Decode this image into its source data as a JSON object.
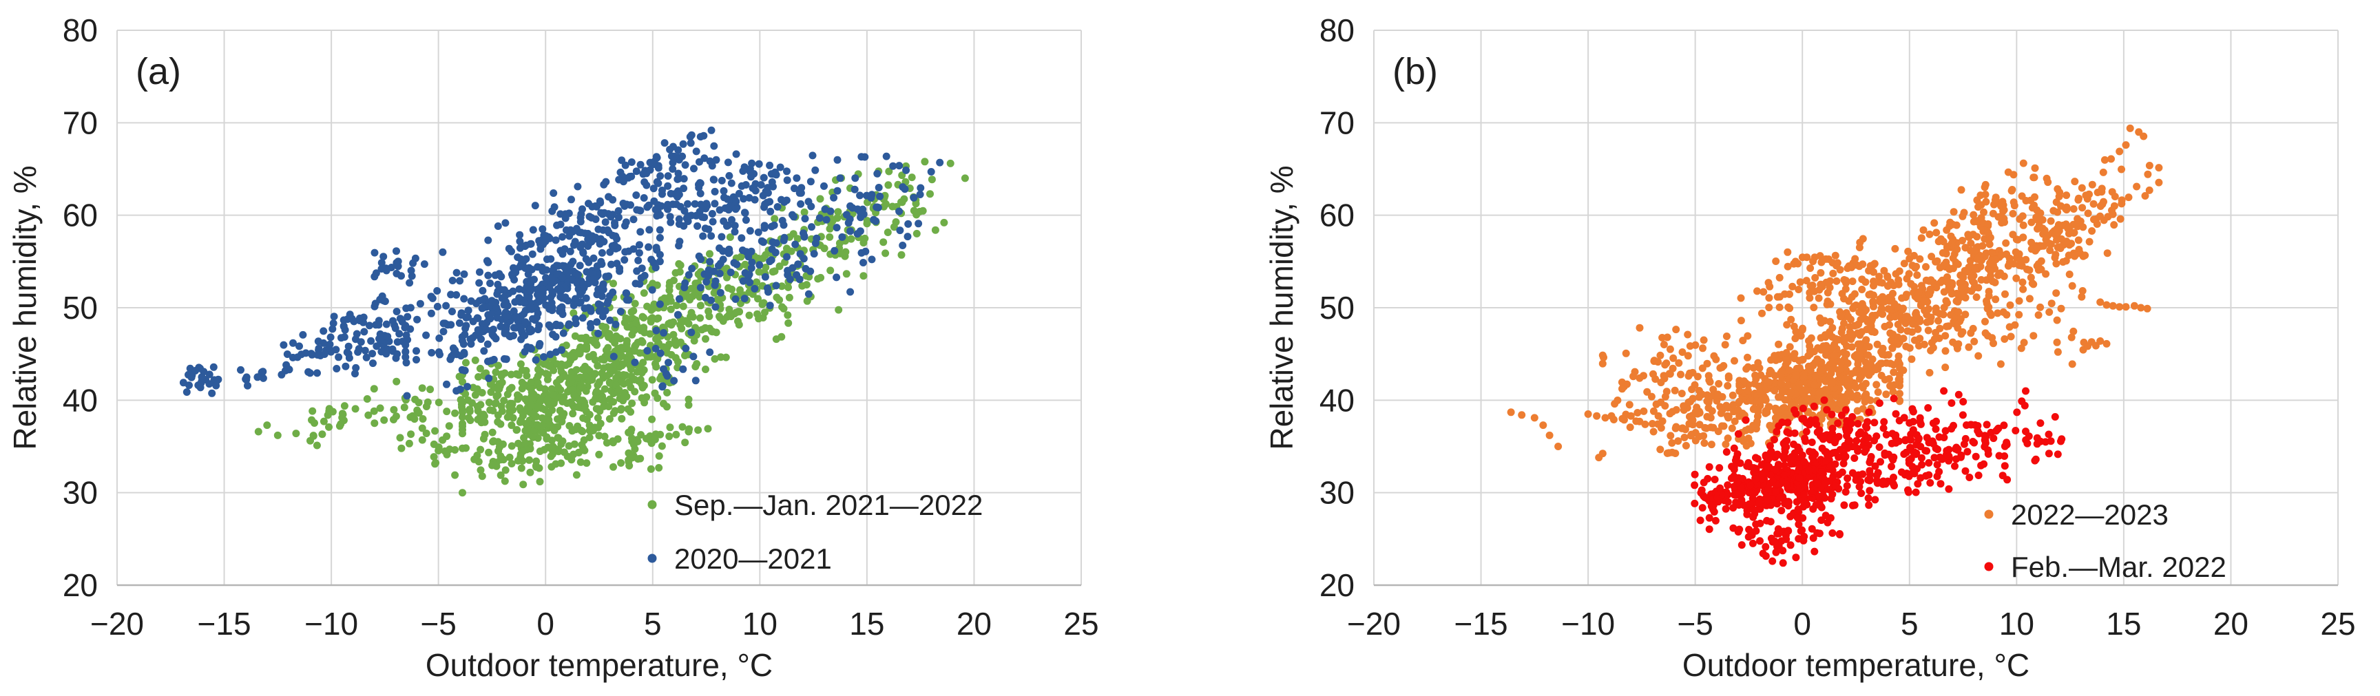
{
  "figure": {
    "background": "#ffffff",
    "text_color": "#1f1f1f",
    "grid_color": "#d6d6d6",
    "axis_line_color": "#b5b5b5"
  },
  "chart_data": [
    {
      "type": "scatter",
      "panel_label": "(a)",
      "xlabel": "Outdoor temperature, °C",
      "ylabel": "Relative humidity, %",
      "xlim": [
        -20,
        25
      ],
      "ylim": [
        20,
        80
      ],
      "xticks": [
        -20,
        -15,
        -10,
        -5,
        0,
        5,
        10,
        15,
        20,
        25
      ],
      "xtick_labels": [
        "−20",
        "−15",
        "−10",
        "−5",
        "0",
        "5",
        "10",
        "15",
        "20",
        "25"
      ],
      "yticks": [
        20,
        30,
        40,
        50,
        60,
        70,
        80
      ],
      "ytick_labels": [
        "20",
        "30",
        "40",
        "50",
        "60",
        "70",
        "80"
      ],
      "grid": true,
      "legend_position": "inside-bottom-right",
      "legend": [
        {
          "label": "Sep.—Jan. 2021—2022",
          "color": "#6FAD47"
        },
        {
          "label": "2020—2021",
          "color": "#2D5A9B"
        }
      ],
      "series": [
        {
          "name": "Sep.—Jan. 2021—2022",
          "color": "#6FAD47",
          "marker_radius": 5.5,
          "clusters": [
            {
              "cx": -10.2,
              "cy": 37.6,
              "rx": 1.0,
              "ry": 0.9,
              "slope": 1.1,
              "n": 26
            },
            {
              "cx": -6.6,
              "cy": 38.6,
              "rx": 1.4,
              "ry": 1.7,
              "slope": 0.5,
              "n": 30
            },
            {
              "cx": -5.4,
              "cy": 34.2,
              "rx": 0.9,
              "ry": 0.8,
              "slope": 0.3,
              "n": 10
            },
            {
              "cx": -3.0,
              "cy": 40.3,
              "rx": 1.5,
              "ry": 1.9,
              "slope": 0.6,
              "n": 70
            },
            {
              "cx": -1.2,
              "cy": 33.6,
              "rx": 1.7,
              "ry": 1.2,
              "slope": 0.25,
              "n": 40
            },
            {
              "cx": 1.4,
              "cy": 40.6,
              "rx": 2.4,
              "ry": 2.9,
              "slope": 0.8,
              "n": 450
            },
            {
              "cx": 3.4,
              "cy": 34.8,
              "rx": 2.5,
              "ry": 1.3,
              "slope": 0.4,
              "n": 65
            },
            {
              "cx": 4.6,
              "cy": 47.0,
              "rx": 2.4,
              "ry": 2.4,
              "slope": 0.8,
              "n": 150
            },
            {
              "cx": 6.2,
              "cy": 52.0,
              "rx": 2.4,
              "ry": 1.9,
              "slope": 0.6,
              "n": 75
            },
            {
              "cx": 10.0,
              "cy": 52.0,
              "rx": 2.2,
              "ry": 2.8,
              "slope": 1.0,
              "n": 120
            },
            {
              "cx": 13.5,
              "cy": 58.5,
              "rx": 1.8,
              "ry": 2.4,
              "slope": 0.8,
              "n": 70
            },
            {
              "cx": 16.5,
              "cy": 60.5,
              "rx": 1.4,
              "ry": 2.4,
              "slope": 0.3,
              "n": 35
            }
          ],
          "points": [
            [
              -13.4,
              36.6
            ],
            [
              -13.0,
              37.3
            ],
            [
              -12.5,
              36.2
            ],
            [
              18.6,
              59.2
            ],
            [
              18.2,
              58.4
            ],
            [
              17.7,
              65.8
            ],
            [
              17.1,
              64.1
            ],
            [
              18.9,
              65.6
            ],
            [
              16.8,
              63.6
            ]
          ]
        },
        {
          "name": "2020—2021",
          "color": "#2D5A9B",
          "marker_radius": 5.5,
          "clusters": [
            {
              "cx": -16.0,
              "cy": 42.2,
              "rx": 0.55,
              "ry": 0.75,
              "slope": 0,
              "n": 22
            },
            {
              "cx": -13.6,
              "cy": 42.4,
              "rx": 1.1,
              "ry": 0.5,
              "slope": 0.15,
              "n": 12
            },
            {
              "cx": -10.6,
              "cy": 45.6,
              "rx": 1.2,
              "ry": 1.4,
              "slope": 0.9,
              "n": 40
            },
            {
              "cx": -7.6,
              "cy": 47.6,
              "rx": 1.5,
              "ry": 2.1,
              "slope": 0.8,
              "n": 85
            },
            {
              "cx": -7.0,
              "cy": 54.6,
              "rx": 1.0,
              "ry": 1.0,
              "slope": 0.3,
              "n": 22
            },
            {
              "cx": -0.6,
              "cy": 50.6,
              "rx": 2.7,
              "ry": 2.9,
              "slope": 0.9,
              "n": 480
            },
            {
              "cx": 2.6,
              "cy": 60.0,
              "rx": 2.4,
              "ry": 1.9,
              "slope": 0.8,
              "n": 120
            },
            {
              "cx": 5.6,
              "cy": 65.4,
              "rx": 1.5,
              "ry": 1.4,
              "slope": 0.5,
              "n": 55
            },
            {
              "cx": 5.5,
              "cy": 43.5,
              "rx": 1.2,
              "ry": 1.8,
              "slope": 0.5,
              "n": 18
            },
            {
              "cx": 9.0,
              "cy": 61.4,
              "rx": 2.1,
              "ry": 2.4,
              "slope": 0.5,
              "n": 150
            },
            {
              "cx": 9.6,
              "cy": 54.0,
              "rx": 2.1,
              "ry": 2.3,
              "slope": 0.6,
              "n": 80
            },
            {
              "cx": 14.4,
              "cy": 60.4,
              "rx": 1.9,
              "ry": 2.8,
              "slope": 0.6,
              "n": 60
            }
          ],
          "points": [
            [
              -16.9,
              41.9
            ],
            [
              -16.5,
              42.7
            ],
            [
              18.4,
              65.7
            ],
            [
              18.0,
              64.7
            ],
            [
              17.4,
              59.1
            ],
            [
              16.9,
              57.7
            ],
            [
              14.9,
              66.3
            ]
          ]
        }
      ]
    },
    {
      "type": "scatter",
      "panel_label": "(b)",
      "xlabel": "Outdoor temperature, °C",
      "ylabel": "Relative humidity, %",
      "xlim": [
        -20,
        25
      ],
      "ylim": [
        20,
        80
      ],
      "xticks": [
        -20,
        -15,
        -10,
        -5,
        0,
        5,
        10,
        15,
        20,
        25
      ],
      "xtick_labels": [
        "−20",
        "−15",
        "−10",
        "−5",
        "0",
        "5",
        "10",
        "15",
        "20",
        "25"
      ],
      "yticks": [
        20,
        30,
        40,
        50,
        60,
        70,
        80
      ],
      "ytick_labels": [
        "20",
        "30",
        "40",
        "50",
        "60",
        "70",
        "80"
      ],
      "grid": true,
      "legend_position": "inside-bottom-right",
      "legend": [
        {
          "label": "2022—2023",
          "color": "#ED7D31"
        },
        {
          "label": "Feb.—Mar. 2022",
          "color": "#F30B0B"
        }
      ],
      "series": [
        {
          "name": "2022—2023",
          "color": "#ED7D31",
          "marker_radius": 5.5,
          "clusters": [
            {
              "cx": -5.8,
              "cy": 41.5,
              "rx": 1.6,
              "ry": 3.2,
              "slope": 0.4,
              "n": 120
            },
            {
              "cx": -5.2,
              "cy": 35.8,
              "rx": 1.2,
              "ry": 0.9,
              "slope": 0.3,
              "n": 25
            },
            {
              "cx": -3.1,
              "cy": 39.6,
              "rx": 1.4,
              "ry": 1.9,
              "slope": 0.4,
              "n": 80
            },
            {
              "cx": 0.8,
              "cy": 41.4,
              "rx": 1.7,
              "ry": 2.1,
              "slope": 0.6,
              "n": 420
            },
            {
              "cx": 2.0,
              "cy": 47.4,
              "rx": 2.1,
              "ry": 2.1,
              "slope": 0.8,
              "n": 130
            },
            {
              "cx": 0.6,
              "cy": 53.0,
              "rx": 1.9,
              "ry": 1.8,
              "slope": 0.5,
              "n": 90
            },
            {
              "cx": 5.5,
              "cy": 49.0,
              "rx": 2.1,
              "ry": 2.9,
              "slope": 0.8,
              "n": 190
            },
            {
              "cx": 7.5,
              "cy": 55.0,
              "rx": 1.9,
              "ry": 2.1,
              "slope": 0.7,
              "n": 110
            },
            {
              "cx": 8.3,
              "cy": 60.0,
              "rx": 1.6,
              "ry": 2.0,
              "slope": 1.0,
              "n": 70
            },
            {
              "cx": 10.5,
              "cy": 55.5,
              "rx": 1.7,
              "ry": 2.7,
              "slope": 0.8,
              "n": 100
            },
            {
              "cx": 11.8,
              "cy": 59.5,
              "rx": 1.5,
              "ry": 2.2,
              "slope": 0.8,
              "n": 60
            },
            {
              "cx": 9.0,
              "cy": 47.0,
              "rx": 2.3,
              "ry": 1.9,
              "slope": 0.3,
              "n": 40
            },
            {
              "cx": 14.0,
              "cy": 61.0,
              "rx": 1.2,
              "ry": 2.2,
              "slope": 1.4,
              "n": 40
            }
          ],
          "points": [
            [
              -13.6,
              38.7
            ],
            [
              -13.1,
              38.4
            ],
            [
              -12.5,
              38.1
            ],
            [
              -12.1,
              37.3
            ],
            [
              -11.8,
              36.2
            ],
            [
              -11.4,
              35.0
            ],
            [
              -9.5,
              33.8
            ],
            [
              -10.0,
              38.5
            ],
            [
              -9.6,
              38.3
            ],
            [
              -9.2,
              38.1
            ],
            [
              -8.8,
              37.9
            ],
            [
              -8.4,
              38.0
            ],
            [
              -8.0,
              38.3
            ],
            [
              -7.6,
              37.7
            ],
            [
              -6.3,
              46.8
            ],
            [
              -5.6,
              45.2
            ],
            [
              -4.6,
              46.5
            ],
            [
              -3.6,
              46.0
            ],
            [
              13.9,
              50.6
            ],
            [
              14.2,
              50.3
            ],
            [
              14.5,
              50.2
            ],
            [
              14.8,
              50.1
            ],
            [
              15.1,
              50.1
            ],
            [
              15.5,
              50.2
            ],
            [
              15.8,
              50.0
            ],
            [
              16.1,
              49.9
            ],
            [
              13.5,
              46.3
            ],
            [
              13.7,
              45.9
            ],
            [
              13.9,
              46.4
            ],
            [
              14.2,
              46.1
            ],
            [
              15.3,
              69.4
            ],
            [
              15.7,
              69.0
            ],
            [
              15.1,
              67.6
            ],
            [
              14.8,
              66.9
            ],
            [
              16.2,
              62.7
            ],
            [
              16.0,
              62.1
            ],
            [
              15.6,
              63.1
            ]
          ]
        },
        {
          "name": "Feb.—Mar. 2022",
          "color": "#F30B0B",
          "marker_radius": 5.5,
          "clusters": [
            {
              "cx": -0.6,
              "cy": 31.4,
              "rx": 1.7,
              "ry": 1.9,
              "slope": 0.4,
              "n": 380
            },
            {
              "cx": -3.6,
              "cy": 29.6,
              "rx": 0.9,
              "ry": 1.4,
              "slope": 0.5,
              "n": 45
            },
            {
              "cx": -0.9,
              "cy": 25.4,
              "rx": 1.2,
              "ry": 1.2,
              "slope": 0.2,
              "n": 50
            },
            {
              "cx": 1.0,
              "cy": 36.4,
              "rx": 1.9,
              "ry": 1.7,
              "slope": 0.4,
              "n": 110
            },
            {
              "cx": 4.5,
              "cy": 33.4,
              "rx": 1.9,
              "ry": 2.3,
              "slope": 0.5,
              "n": 130
            },
            {
              "cx": 8.0,
              "cy": 35.4,
              "rx": 1.7,
              "ry": 2.1,
              "slope": 0.4,
              "n": 60
            },
            {
              "cx": 10.8,
              "cy": 35.4,
              "rx": 0.9,
              "ry": 1.4,
              "slope": 0.3,
              "n": 16
            }
          ],
          "points": [
            [
              6.6,
              41.0
            ],
            [
              7.3,
              40.6
            ],
            [
              -1.4,
              22.6
            ],
            [
              -0.9,
              22.4
            ],
            [
              -0.3,
              23.0
            ],
            [
              11.8,
              38.2
            ],
            [
              11.5,
              36.3
            ],
            [
              12.1,
              35.8
            ],
            [
              10.9,
              33.6
            ]
          ]
        }
      ]
    }
  ]
}
